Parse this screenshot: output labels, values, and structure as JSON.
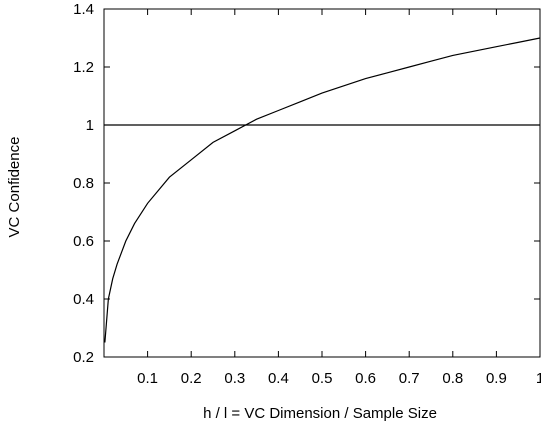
{
  "chart_data": {
    "type": "line",
    "title": "",
    "xlabel": "h / l = VC Dimension / Sample Size",
    "ylabel": "VC Confidence",
    "xlim": [
      0,
      1
    ],
    "ylim": [
      0.2,
      1.4
    ],
    "x_ticks": [
      0.1,
      0.2,
      0.3,
      0.4,
      0.5,
      0.6,
      0.7,
      0.8,
      0.9,
      1
    ],
    "x_tick_labels": [
      "0.1",
      "0.2",
      "0.3",
      "0.4",
      "0.5",
      "0.6",
      "0.7",
      "0.8",
      "0.9",
      "1"
    ],
    "y_ticks": [
      0.2,
      0.4,
      0.6,
      0.8,
      1,
      1.2,
      1.4
    ],
    "y_tick_labels": [
      "0.2",
      "0.4",
      "0.6",
      "0.8",
      "1",
      "1.2",
      "1.4"
    ],
    "grid": false,
    "series": [
      {
        "color": "#000000",
        "x": [
          0.002,
          0.01,
          0.02,
          0.03,
          0.05,
          0.07,
          0.1,
          0.15,
          0.2,
          0.25,
          0.3,
          0.35,
          0.4,
          0.45,
          0.5,
          0.55,
          0.6,
          0.65,
          0.7,
          0.75,
          0.8,
          0.85,
          0.9,
          0.95,
          1.0
        ],
        "values": [
          0.25,
          0.4,
          0.47,
          0.52,
          0.6,
          0.66,
          0.73,
          0.82,
          0.88,
          0.94,
          0.98,
          1.02,
          1.05,
          1.08,
          1.11,
          1.135,
          1.16,
          1.18,
          1.2,
          1.22,
          1.24,
          1.255,
          1.27,
          1.285,
          1.3
        ]
      },
      {
        "color": "#000000",
        "x": [
          0,
          1
        ],
        "values": [
          1,
          1
        ]
      }
    ]
  }
}
